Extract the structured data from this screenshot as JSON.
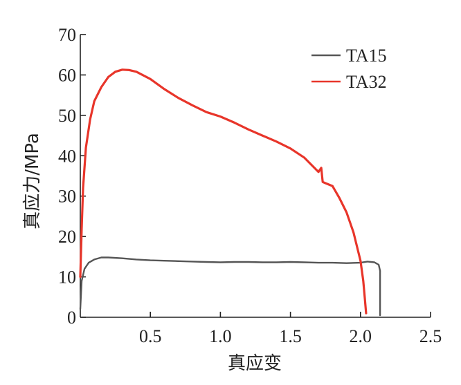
{
  "chart_data": {
    "type": "line",
    "title": "",
    "xlabel": "真应变",
    "ylabel": "真应力/MPa",
    "xlim": [
      0,
      2.5
    ],
    "ylim": [
      0,
      70
    ],
    "x_ticks": [
      "0.5",
      "1.0",
      "1.5",
      "2.0",
      "2.5"
    ],
    "y_ticks": [
      "0",
      "10",
      "20",
      "30",
      "40",
      "50",
      "60",
      "70"
    ],
    "grid": false,
    "legend_position": "top-right",
    "series": [
      {
        "name": "TA15",
        "color": "#555555",
        "x": [
          0.0,
          0.01,
          0.03,
          0.06,
          0.1,
          0.15,
          0.2,
          0.3,
          0.4,
          0.5,
          0.6,
          0.7,
          0.8,
          0.9,
          1.0,
          1.1,
          1.2,
          1.3,
          1.4,
          1.5,
          1.6,
          1.7,
          1.8,
          1.9,
          2.0,
          2.05,
          2.1,
          2.13,
          2.14,
          2.14
        ],
        "y": [
          2,
          9,
          12,
          13.5,
          14.3,
          14.8,
          14.8,
          14.6,
          14.3,
          14.1,
          14.0,
          13.9,
          13.8,
          13.7,
          13.6,
          13.7,
          13.7,
          13.6,
          13.6,
          13.7,
          13.6,
          13.5,
          13.5,
          13.4,
          13.5,
          13.8,
          13.6,
          13.0,
          11.5,
          0.5
        ]
      },
      {
        "name": "TA32",
        "color": "#e8352a",
        "x": [
          0.0,
          0.01,
          0.02,
          0.04,
          0.07,
          0.1,
          0.15,
          0.2,
          0.25,
          0.3,
          0.35,
          0.4,
          0.5,
          0.6,
          0.7,
          0.8,
          0.9,
          1.0,
          1.1,
          1.2,
          1.3,
          1.4,
          1.5,
          1.6,
          1.7,
          1.72,
          1.73,
          1.75,
          1.8,
          1.85,
          1.9,
          1.95,
          2.0,
          2.02,
          2.03,
          2.04
        ],
        "y": [
          10,
          22,
          32,
          42,
          49,
          53.5,
          57,
          59.5,
          60.8,
          61.3,
          61.2,
          60.8,
          59,
          56.5,
          54.3,
          52.5,
          50.8,
          49.7,
          48.2,
          46.5,
          45,
          43.5,
          41.8,
          39.5,
          36,
          37,
          33.5,
          33.2,
          32.5,
          29.5,
          26,
          21,
          14,
          9,
          5,
          1
        ]
      }
    ]
  }
}
